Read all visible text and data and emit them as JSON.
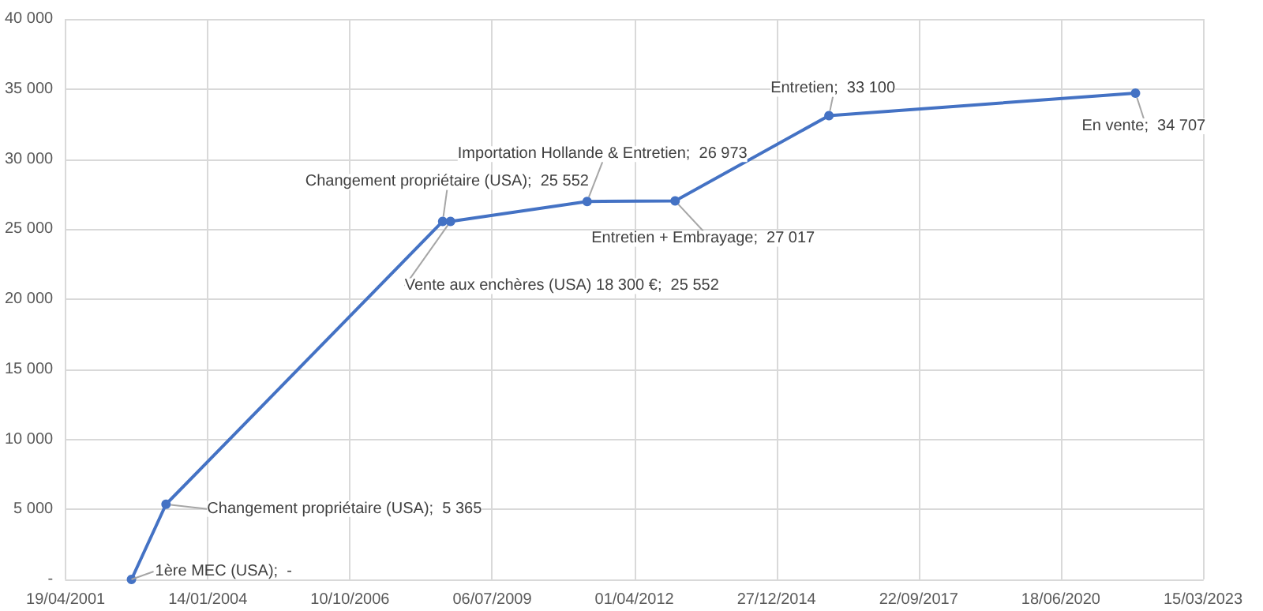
{
  "chart_data": {
    "type": "line",
    "x": [
      "2002-07-26",
      "2003-03-26",
      "2008-07-23",
      "2008-09-16",
      "2011-05-05",
      "2013-01-13",
      "2015-12-31",
      "2021-11-25"
    ],
    "series": [
      {
        "color": "#4472c4",
        "values": [
          0,
          5365,
          25552,
          25552,
          26973,
          27017,
          33100,
          34707
        ],
        "value_labels": [
          null,
          "Changement propriétaire (USA);  5 365",
          "Changement propriétaire (USA);  25 552",
          "Vente aux enchères (USA) 18 300 €;  25 552",
          "Importation Hollande & Entretien;  26 973",
          "Entretien + Embrayage;  27 017",
          "Entretien;  33 100",
          "En vente;  34 707"
        ]
      }
    ],
    "xlim": [
      "2001-04-19",
      "2023-03-15"
    ],
    "xticks": [
      {
        "value": "2001-04-19",
        "label": "19/04/2001"
      },
      {
        "value": "2004-01-14",
        "label": "14/01/2004"
      },
      {
        "value": "2006-10-10",
        "label": "10/10/2006"
      },
      {
        "value": "2009-07-06",
        "label": "06/07/2009"
      },
      {
        "value": "2012-04-01",
        "label": "01/04/2012"
      },
      {
        "value": "2014-12-27",
        "label": "27/12/2014"
      },
      {
        "value": "2017-09-22",
        "label": "22/09/2017"
      },
      {
        "value": "2020-06-18",
        "label": "18/06/2020"
      },
      {
        "value": "2023-03-15",
        "label": "15/03/2023"
      }
    ],
    "ylim": [
      0,
      40000
    ],
    "yticks": [
      {
        "value": 0,
        "label": "-"
      },
      {
        "value": 5000,
        "label": "5 000"
      },
      {
        "value": 10000,
        "label": "10 000"
      },
      {
        "value": 15000,
        "label": "15 000"
      },
      {
        "value": 20000,
        "label": "20 000"
      },
      {
        "value": 25000,
        "label": "25 000"
      },
      {
        "value": 30000,
        "label": "30 000"
      },
      {
        "value": 35000,
        "label": "35 000"
      },
      {
        "value": 40000,
        "label": "40 000"
      }
    ],
    "annotations": [
      {
        "text": "1ère MEC (USA);  -",
        "x": "2002-07-26",
        "y": 0
      }
    ],
    "grid": true,
    "marker": "circle",
    "line_style": "solid"
  }
}
